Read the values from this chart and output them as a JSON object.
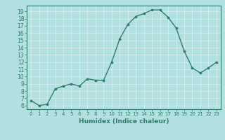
{
  "x": [
    0,
    1,
    2,
    3,
    4,
    5,
    6,
    7,
    8,
    9,
    10,
    11,
    12,
    13,
    14,
    15,
    16,
    17,
    18,
    19,
    20,
    21,
    22,
    23
  ],
  "y": [
    6.7,
    6.0,
    6.2,
    8.3,
    8.7,
    9.0,
    8.7,
    9.7,
    9.5,
    9.5,
    12.0,
    15.2,
    17.2,
    18.3,
    18.7,
    19.2,
    19.2,
    18.2,
    16.7,
    13.5,
    11.2,
    10.5,
    11.2,
    12.0
  ],
  "title": "",
  "xlabel": "Humidex (Indice chaleur)",
  "ylabel": "",
  "xlim": [
    -0.5,
    23.5
  ],
  "ylim": [
    5.5,
    19.8
  ],
  "yticks": [
    6,
    7,
    8,
    9,
    10,
    11,
    12,
    13,
    14,
    15,
    16,
    17,
    18,
    19
  ],
  "xticks": [
    0,
    1,
    2,
    3,
    4,
    5,
    6,
    7,
    8,
    9,
    10,
    11,
    12,
    13,
    14,
    15,
    16,
    17,
    18,
    19,
    20,
    21,
    22,
    23
  ],
  "line_color": "#2e7d6e",
  "marker_color": "#2e7d6e",
  "bg_color": "#b2e0e0",
  "grid_color": "#d4eded",
  "xlabel_color": "#2e7d6e",
  "tick_color": "#2e7d6e",
  "spine_color": "#2e7d6e"
}
